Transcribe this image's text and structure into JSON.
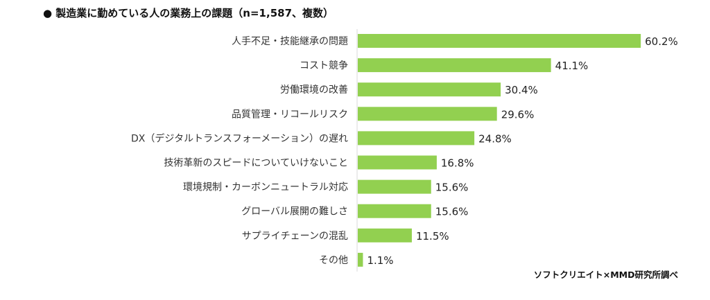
{
  "chart_data": {
    "type": "bar",
    "orientation": "horizontal",
    "title": "● 製造業に勤めている人の業務上の課題（n=1,587、複数）",
    "categories": [
      "人手不足・技能継承の問題",
      "コスト競争",
      "労働環境の改善",
      "品質管理・リコールリスク",
      "DX（デジタルトランスフォーメーション）の遅れ",
      "技術革新のスピードについていけないこと",
      "環境規制・カーボンニュートラル対応",
      "グローバル展開の難しさ",
      "サプライチェーンの混乱",
      "その他"
    ],
    "values": [
      60.2,
      41.1,
      30.4,
      29.6,
      24.8,
      16.8,
      15.6,
      15.6,
      11.5,
      1.1
    ],
    "value_labels": [
      "60.2%",
      "41.1%",
      "30.4%",
      "29.6%",
      "24.8%",
      "16.8%",
      "15.6%",
      "15.6%",
      "11.5%",
      "1.1%"
    ],
    "unit": "%",
    "xlim": [
      0,
      65
    ],
    "grid": false,
    "bar_color": "#92d050",
    "source": "ソフトクリエイト×MMD研究所調べ"
  }
}
